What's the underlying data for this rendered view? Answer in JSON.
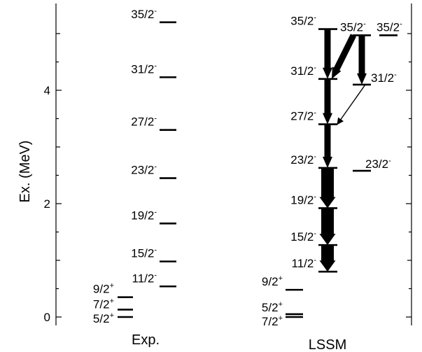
{
  "y_axis": {
    "title": "Ex. (MeV)",
    "ticks": [
      {
        "value": 0,
        "label": "0"
      },
      {
        "value": 2,
        "label": "2"
      },
      {
        "value": 4,
        "label": "4"
      }
    ],
    "range": [
      -0.2,
      5.5
    ]
  },
  "columns": {
    "exp": "Exp.",
    "lssm": "LSSM"
  },
  "exp_levels": [
    {
      "j": "5/2",
      "parity": "+",
      "energy": 0.0
    },
    {
      "j": "7/2",
      "parity": "+",
      "energy": 0.13
    },
    {
      "j": "9/2",
      "parity": "+",
      "energy": 0.35
    },
    {
      "j": "11/2",
      "parity": "-",
      "energy": 0.54
    },
    {
      "j": "15/2",
      "parity": "-",
      "energy": 0.98
    },
    {
      "j": "19/2",
      "parity": "-",
      "energy": 1.65
    },
    {
      "j": "23/2",
      "parity": "-",
      "energy": 2.45
    },
    {
      "j": "27/2",
      "parity": "-",
      "energy": 3.3
    },
    {
      "j": "31/2",
      "parity": "-",
      "energy": 4.23
    },
    {
      "j": "35/2",
      "parity": "-",
      "energy": 5.2
    }
  ],
  "lssm_levels": [
    {
      "j": "7/2",
      "parity": "+",
      "energy": 0.0
    },
    {
      "j": "5/2",
      "parity": "+",
      "energy": 0.05
    },
    {
      "j": "9/2",
      "parity": "+",
      "energy": 0.48
    },
    {
      "j": "11/2",
      "parity": "-",
      "energy": 0.8
    },
    {
      "j": "15/2",
      "parity": "-",
      "energy": 1.27
    },
    {
      "j": "19/2",
      "parity": "-",
      "energy": 1.92
    },
    {
      "j": "23/2",
      "parity": "-",
      "energy": 2.63
    },
    {
      "j": "27/2",
      "parity": "-",
      "energy": 3.4
    },
    {
      "j": "31/2",
      "parity": "-",
      "energy": 4.2
    },
    {
      "j": "35/2",
      "parity": "-",
      "energy": 5.08
    }
  ],
  "lssm_side_levels": [
    {
      "j": "35/2",
      "parity": "-",
      "energy": 4.97
    },
    {
      "j": "35/2",
      "parity": "-",
      "energy": 4.97
    },
    {
      "j": "31/2",
      "parity": "-",
      "energy": 4.1
    },
    {
      "j": "23/2",
      "parity": "-",
      "energy": 2.58
    }
  ],
  "transitions": [
    {
      "from": 5.08,
      "to": 4.2,
      "strength": "medium"
    },
    {
      "from": 4.2,
      "to": 3.4,
      "strength": "medium"
    },
    {
      "from": 3.4,
      "to": 2.63,
      "strength": "medium"
    },
    {
      "from": 2.63,
      "to": 1.92,
      "strength": "strong"
    },
    {
      "from": 1.92,
      "to": 1.27,
      "strength": "strong"
    },
    {
      "from": 1.27,
      "to": 0.8,
      "strength": "strong"
    },
    {
      "from": 4.97,
      "to": 4.2,
      "strength": "medium"
    },
    {
      "from": 4.97,
      "to": 4.1,
      "strength": "medium"
    },
    {
      "from": 4.1,
      "to": 3.4,
      "strength": "thin"
    }
  ]
}
